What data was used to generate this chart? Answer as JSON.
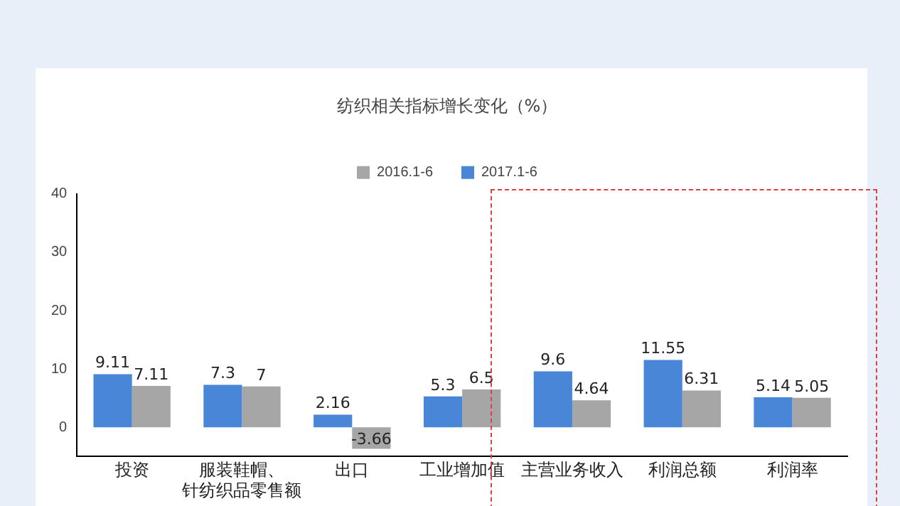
{
  "chart_data": {
    "type": "bar",
    "title": "纺织相关指标增长变化（%）",
    "categories": [
      "投资",
      "服装鞋帽、针纺织品零售额",
      "出口",
      "工业增加值",
      "主营业务收入",
      "利润总额",
      "利润率"
    ],
    "series": [
      {
        "name": "2017.1-6",
        "color": "#4a86d8",
        "values": [
          9.11,
          7.3,
          2.16,
          5.3,
          9.6,
          11.55,
          5.14
        ]
      },
      {
        "name": "2016.1-6",
        "color": "#a6a6a6",
        "values": [
          7.11,
          7,
          -3.66,
          6.5,
          4.64,
          6.31,
          5.05
        ]
      }
    ],
    "ylim": [
      -5,
      40
    ],
    "yticks": [
      0,
      10,
      20,
      30,
      40
    ],
    "grid": false,
    "legend": "top",
    "data_labels": true
  }
}
